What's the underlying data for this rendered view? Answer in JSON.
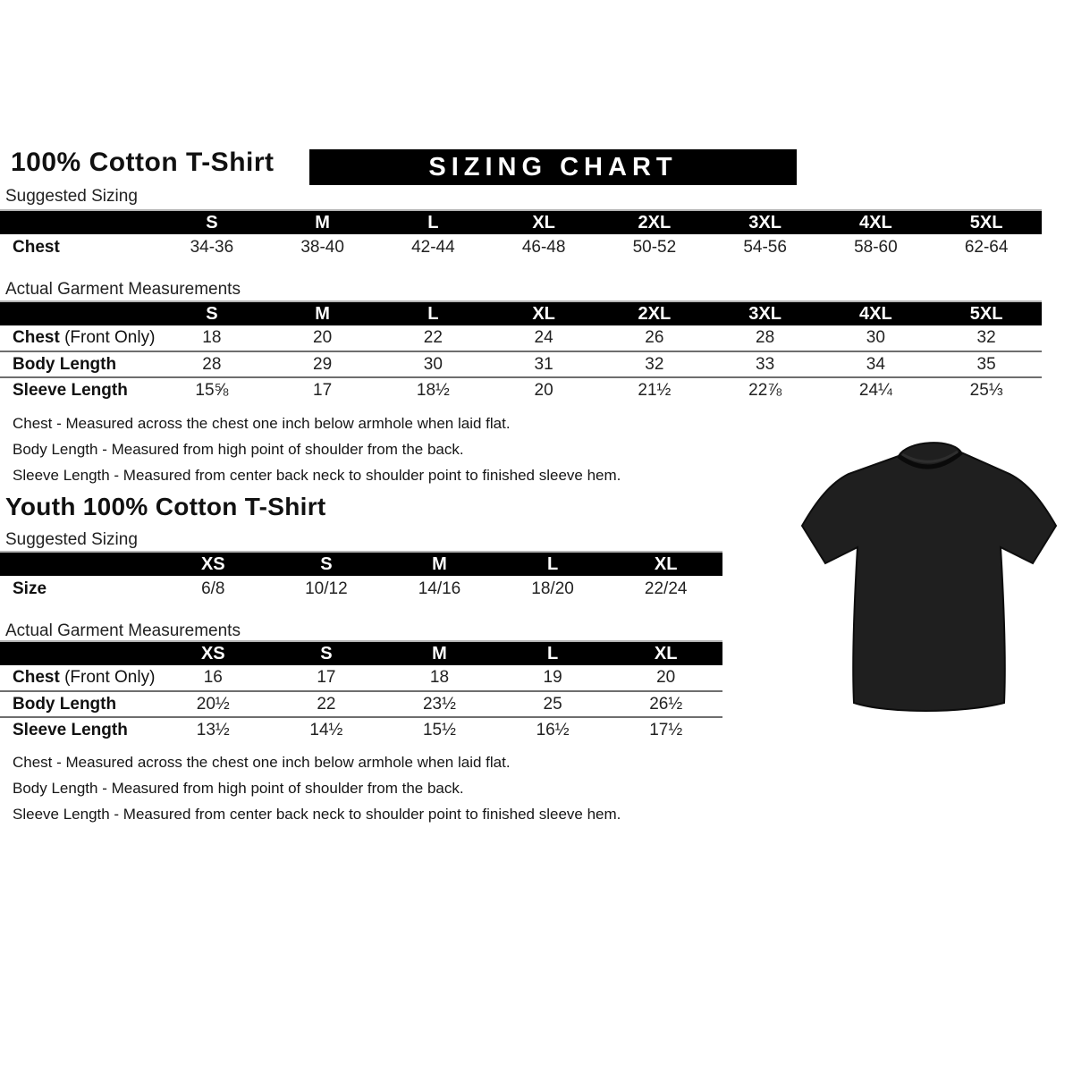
{
  "banner": "SIZING CHART",
  "colors": {
    "banner_bg": "#000000",
    "banner_text": "#ffffff",
    "shirt": "#1f1f1f"
  },
  "adult": {
    "title": "100% Cotton T-Shirt",
    "suggested_label": "Suggested Sizing",
    "suggested_table": {
      "columns": [
        "S",
        "M",
        "L",
        "XL",
        "2XL",
        "3XL",
        "4XL",
        "5XL"
      ],
      "rows": [
        {
          "label": "Chest",
          "suffix": "",
          "values": [
            "34-36",
            "38-40",
            "42-44",
            "46-48",
            "50-52",
            "54-56",
            "58-60",
            "62-64"
          ]
        }
      ]
    },
    "actual_label": "Actual Garment Measurements",
    "actual_table": {
      "columns": [
        "S",
        "M",
        "L",
        "XL",
        "2XL",
        "3XL",
        "4XL",
        "5XL"
      ],
      "rows": [
        {
          "label": "Chest",
          "suffix": " (Front Only)",
          "values": [
            "18",
            "20",
            "22",
            "24",
            "26",
            "28",
            "30",
            "32"
          ]
        },
        {
          "label": "Body Length",
          "suffix": "",
          "values": [
            "28",
            "29",
            "30",
            "31",
            "32",
            "33",
            "34",
            "35"
          ]
        },
        {
          "label": "Sleeve Length",
          "suffix": "",
          "values": [
            "15⅝",
            "17",
            "18½",
            "20",
            "21½",
            "22⅞",
            "24¼",
            "25⅓"
          ]
        }
      ]
    },
    "notes": [
      "Chest - Measured across the chest one inch below armhole when laid flat.",
      "Body Length - Measured from high point of shoulder from the back.",
      "Sleeve Length - Measured from center back neck to shoulder point to finished sleeve hem."
    ]
  },
  "youth": {
    "title": "Youth 100% Cotton T-Shirt",
    "suggested_label": "Suggested Sizing",
    "suggested_table": {
      "columns": [
        "XS",
        "S",
        "M",
        "L",
        "XL"
      ],
      "rows": [
        {
          "label": "Size",
          "suffix": "",
          "values": [
            "6/8",
            "10/12",
            "14/16",
            "18/20",
            "22/24"
          ]
        }
      ]
    },
    "actual_label": "Actual Garment Measurements",
    "actual_table": {
      "columns": [
        "XS",
        "S",
        "M",
        "L",
        "XL"
      ],
      "rows": [
        {
          "label": "Chest",
          "suffix": " (Front Only)",
          "values": [
            "16",
            "17",
            "18",
            "19",
            "20"
          ]
        },
        {
          "label": "Body Length",
          "suffix": "",
          "values": [
            "20½",
            "22",
            "23½",
            "25",
            "26½"
          ]
        },
        {
          "label": "Sleeve Length",
          "suffix": "",
          "values": [
            "13½",
            "14½",
            "15½",
            "16½",
            "17½"
          ]
        }
      ]
    },
    "notes": [
      "Chest - Measured across the chest one inch below armhole when laid flat.",
      "Body Length - Measured from high point of shoulder from the back.",
      "Sleeve Length - Measured from center back neck to shoulder point to finished sleeve hem."
    ]
  }
}
